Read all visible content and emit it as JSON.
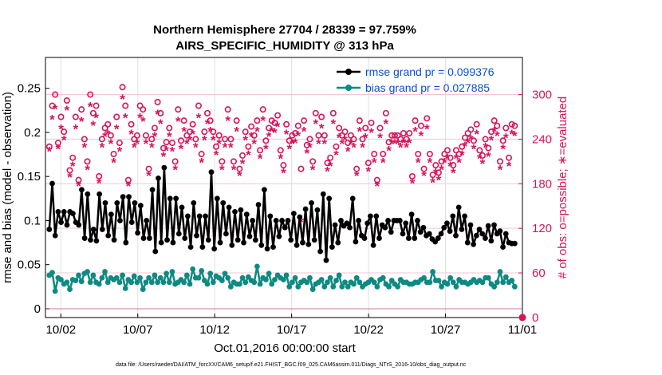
{
  "chart_data": {
    "type": "line",
    "title_line1": "Northern Hemisphere 27704 / 28339 = 97.759%",
    "title_line2": "AIRS_SPECIFIC_HUMIDITY @ 313 hPa",
    "xlabel": "Oct.01,2016 00:00:00 start",
    "ylabel": "rmse and bias (model - observation)",
    "ylabel_right": "# of obs: o=possible; ∗=evaluated",
    "footnote": "data file: /Users/raeder/DAI/ATM_forcXX/CAM6_setup/f.e21.FHIST_BGC.f09_025.CAM6assim.011/Diags_NTrS_2016-10/obs_diag_output.nc",
    "xlim": [
      0,
      31
    ],
    "ylim": [
      -0.01,
      0.285
    ],
    "ylim_right": [
      -0.1,
      350.0
    ],
    "x_ticks": [
      1,
      6,
      11,
      16,
      21,
      26,
      31
    ],
    "x_tick_labels": [
      "10/02",
      "10/07",
      "10/12",
      "10/17",
      "10/22",
      "10/27",
      "11/01"
    ],
    "y_ticks": [
      0,
      0.05,
      0.1,
      0.15,
      0.2,
      0.25
    ],
    "y_tick_labels": [
      "0",
      "0.05",
      "0.1",
      "0.15",
      "0.2",
      "0.25"
    ],
    "y_right_ticks": [
      0,
      60,
      120,
      180,
      240,
      300
    ],
    "y_right_tick_labels": [
      "0",
      "60",
      "120",
      "180",
      "240",
      "300"
    ],
    "colors": {
      "rmse": "#000000",
      "bias": "#0e8a82",
      "obs": "#d8135a",
      "legend_text": "#0a4fd6"
    },
    "series": [
      {
        "name": "rmse grand pr = 0.099376",
        "key": "rmse",
        "values": [
          0.09,
          0.142,
          0.083,
          0.11,
          0.098,
          0.11,
          0.095,
          0.11,
          0.108,
          0.098,
          0.095,
          0.135,
          0.08,
          0.13,
          0.078,
          0.09,
          0.077,
          0.13,
          0.09,
          0.12,
          0.083,
          0.107,
          0.078,
          0.12,
          0.1,
          0.127,
          0.075,
          0.127,
          0.098,
          0.12,
          0.086,
          0.117,
          0.08,
          0.1,
          0.08,
          0.135,
          0.065,
          0.148,
          0.075,
          0.16,
          0.078,
          0.125,
          0.075,
          0.125,
          0.085,
          0.115,
          0.08,
          0.105,
          0.07,
          0.12,
          0.083,
          0.105,
          0.07,
          0.105,
          0.078,
          0.155,
          0.068,
          0.125,
          0.075,
          0.12,
          0.085,
          0.115,
          0.072,
          0.11,
          0.078,
          0.112,
          0.075,
          0.107,
          0.082,
          0.1,
          0.078,
          0.118,
          0.072,
          0.135,
          0.068,
          0.105,
          0.07,
          0.1,
          0.082,
          0.1,
          0.092,
          0.1,
          0.078,
          0.108,
          0.072,
          0.104,
          0.075,
          0.113,
          0.073,
          0.12,
          0.078,
          0.112,
          0.065,
          0.13,
          0.055,
          0.125,
          0.07,
          0.095,
          0.075,
          0.1,
          0.094,
          0.097,
          0.092,
          0.125,
          0.076,
          0.1,
          0.083,
          0.08,
          0.097,
          0.105,
          0.072,
          0.105,
          0.08,
          0.095,
          0.092,
          0.1,
          0.087,
          0.1,
          0.1,
          0.1,
          0.085,
          0.097,
          0.08,
          0.107,
          0.08,
          0.1,
          0.087,
          0.092,
          0.083,
          0.085,
          0.079,
          0.076,
          0.08,
          0.085,
          0.092,
          0.097,
          0.088,
          0.105,
          0.083,
          0.115,
          0.09,
          0.105,
          0.075,
          0.095,
          0.073,
          0.083,
          0.09,
          0.085,
          0.08,
          0.094,
          0.077,
          0.095,
          0.085,
          0.088,
          0.07,
          0.085,
          0.075,
          0.074,
          0.074
        ]
      },
      {
        "name": "bias grand pr = 0.027885",
        "key": "bias",
        "values": [
          0.038,
          0.041,
          0.02,
          0.035,
          0.033,
          0.028,
          0.03,
          0.022,
          0.033,
          0.032,
          0.038,
          0.031,
          0.04,
          0.042,
          0.03,
          0.038,
          0.03,
          0.028,
          0.035,
          0.042,
          0.03,
          0.035,
          0.033,
          0.035,
          0.03,
          0.038,
          0.023,
          0.033,
          0.03,
          0.037,
          0.03,
          0.035,
          0.022,
          0.03,
          0.035,
          0.03,
          0.038,
          0.03,
          0.035,
          0.03,
          0.04,
          0.03,
          0.042,
          0.028,
          0.03,
          0.033,
          0.03,
          0.038,
          0.028,
          0.045,
          0.035,
          0.035,
          0.043,
          0.032,
          0.028,
          0.04,
          0.03,
          0.037,
          0.035,
          0.032,
          0.04,
          0.035,
          0.025,
          0.03,
          0.028,
          0.028,
          0.035,
          0.03,
          0.036,
          0.032,
          0.03,
          0.048,
          0.028,
          0.035,
          0.033,
          0.04,
          0.028,
          0.033,
          0.038,
          0.035,
          0.033,
          0.038,
          0.025,
          0.03,
          0.035,
          0.025,
          0.03,
          0.032,
          0.03,
          0.035,
          0.022,
          0.028,
          0.03,
          0.033,
          0.025,
          0.03,
          0.035,
          0.025,
          0.032,
          0.038,
          0.025,
          0.03,
          0.025,
          0.03,
          0.028,
          0.035,
          0.03,
          0.025,
          0.028,
          0.03,
          0.033,
          0.03,
          0.025,
          0.033,
          0.035,
          0.028,
          0.025,
          0.032,
          0.028,
          0.025,
          0.033,
          0.03,
          0.03,
          0.028,
          0.028,
          0.03,
          0.03,
          0.033,
          0.035,
          0.03,
          0.03,
          0.042,
          0.032,
          0.032,
          0.025,
          0.03,
          0.028,
          0.035,
          0.03,
          0.025,
          0.033,
          0.03,
          0.03,
          0.028,
          0.03,
          0.033,
          0.03,
          0.032,
          0.03,
          0.035,
          0.035,
          0.028,
          0.025,
          0.03,
          0.042,
          0.03,
          0.036,
          0.03,
          0.032,
          0.025
        ]
      },
      {
        "name": "# of obs possible",
        "key": "obs_possible",
        "marker": "o",
        "values": [
          230,
          285,
          300,
          235,
          270,
          250,
          292,
          198,
          215,
          270,
          185,
          280,
          240,
          210,
          300,
          275,
          285,
          190,
          240,
          255,
          260,
          245,
          220,
          270,
          235,
          310,
          285,
          185,
          260,
          240,
          245,
          285,
          280,
          245,
          200,
          240,
          255,
          290,
          275,
          228,
          236,
          255,
          235,
          210,
          280,
          238,
          265,
          245,
          250,
          260,
          240,
          285,
          220,
          250,
          275,
          265,
          250,
          230,
          245,
          210,
          240,
          280,
          240,
          210,
          265,
          200,
          218,
          250,
          230,
          257,
          245,
          265,
          225,
          280,
          238,
          255,
          265,
          262,
          272,
          225,
          205,
          260,
          238,
          245,
          248,
          258,
          200,
          265,
          232,
          240,
          210,
          275,
          245,
          270,
          245,
          208,
          215,
          275,
          230,
          255,
          245,
          250,
          235,
          245,
          240,
          200,
          265,
          240,
          255,
          208,
          262,
          220,
          185,
          255,
          220,
          275,
          236,
          245,
          245,
          245,
          240,
          248,
          240,
          248,
          190,
          265,
          220,
          258,
          200,
          268,
          220,
          192,
          205,
          195,
          210,
          220,
          225,
          215,
          205,
          225,
          220,
          230,
          242,
          248,
          253,
          238,
          260,
          225,
          218,
          240,
          228,
          250,
          265,
          258,
          210,
          238,
          255,
          215,
          260,
          258
        ]
      },
      {
        "name": "# of obs evaluated",
        "key": "obs_evaluated",
        "marker": "*",
        "values": [
          225,
          268,
          282,
          228,
          255,
          240,
          280,
          190,
          205,
          255,
          178,
          265,
          230,
          200,
          285,
          260,
          270,
          182,
          230,
          245,
          248,
          235,
          210,
          255,
          225,
          295,
          270,
          178,
          248,
          230,
          235,
          270,
          265,
          235,
          192,
          230,
          245,
          275,
          262,
          218,
          226,
          245,
          225,
          200,
          265,
          228,
          252,
          235,
          240,
          248,
          230,
          270,
          210,
          240,
          262,
          252,
          240,
          220,
          235,
          200,
          230,
          266,
          230,
          200,
          252,
          192,
          208,
          240,
          220,
          245,
          235,
          252,
          215,
          266,
          228,
          245,
          252,
          250,
          258,
          215,
          196,
          248,
          228,
          235,
          236,
          246,
          130,
          252,
          222,
          230,
          200,
          262,
          235,
          256,
          235,
          198,
          205,
          262,
          220,
          243,
          235,
          240,
          225,
          235,
          230,
          192,
          252,
          230,
          243,
          198,
          250,
          210,
          178,
          243,
          210,
          262,
          226,
          235,
          235,
          235,
          230,
          236,
          230,
          236,
          182,
          252,
          210,
          246,
          192,
          255,
          210,
          183,
          196,
          186,
          200,
          210,
          215,
          205,
          196,
          215,
          210,
          220,
          232,
          236,
          241,
          228,
          248,
          215,
          208,
          230,
          218,
          240,
          252,
          246,
          200,
          228,
          243,
          205,
          248,
          246
        ]
      }
    ],
    "legend_position": "top-right"
  }
}
